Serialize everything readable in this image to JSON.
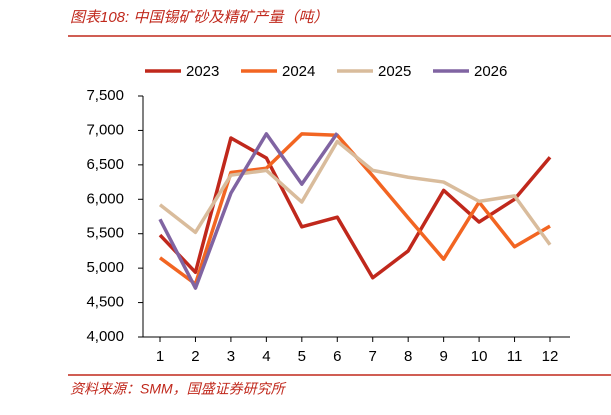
{
  "chart_data": {
    "type": "line",
    "title": "图表108: 中国锡矿砂及精矿产量（吨）",
    "source": "资料来源：SMM，国盛证券研究所",
    "categories": [
      "1",
      "2",
      "3",
      "4",
      "5",
      "6",
      "7",
      "8",
      "9",
      "10",
      "11",
      "12"
    ],
    "series": [
      {
        "name": "2023",
        "color": "#c0281c",
        "values": [
          5480,
          4940,
          6890,
          6600,
          5600,
          5740,
          4860,
          5250,
          6130,
          5670,
          6000,
          6610
        ]
      },
      {
        "name": "2024",
        "color": "#f26522",
        "values": [
          5150,
          4770,
          6390,
          6450,
          6950,
          6930,
          6340,
          5730,
          5130,
          5960,
          5310,
          5610
        ]
      },
      {
        "name": "2025",
        "color": "#d9bc9c",
        "values": [
          5920,
          5520,
          6350,
          6420,
          5960,
          6840,
          6420,
          6320,
          6250,
          5970,
          6050,
          5340
        ]
      },
      {
        "name": "2026",
        "color": "#8064a2",
        "values": [
          5710,
          4710,
          6090,
          6950,
          6220,
          6960,
          null,
          null,
          null,
          null,
          null,
          null
        ]
      }
    ],
    "ylim": [
      4000,
      7500
    ],
    "yticks": [
      {
        "value": 4000,
        "label": "4,000"
      },
      {
        "value": 4500,
        "label": "4,500"
      },
      {
        "value": 5000,
        "label": "5,000"
      },
      {
        "value": 5500,
        "label": "5,500"
      },
      {
        "value": 6000,
        "label": "6,000"
      },
      {
        "value": 6500,
        "label": "6,500"
      },
      {
        "value": 7000,
        "label": "7,000"
      },
      {
        "value": 7500,
        "label": "7,500"
      }
    ],
    "grid": false
  }
}
